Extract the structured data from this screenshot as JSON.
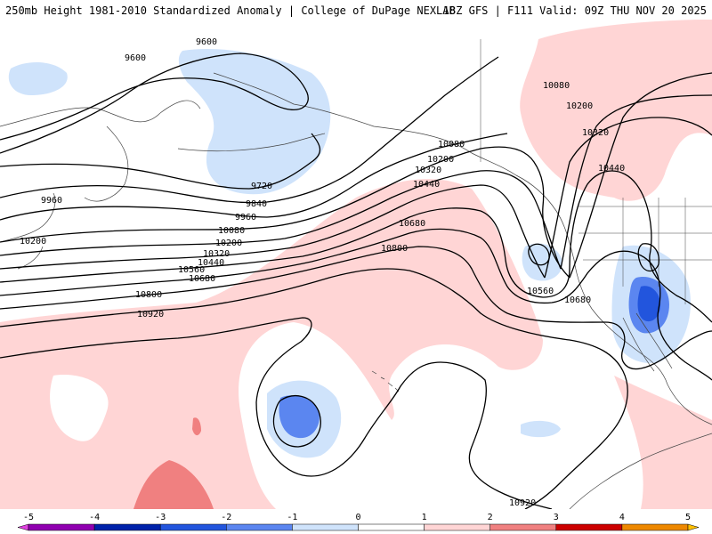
{
  "header": {
    "title_left": "250mb Height 1981-2010 Standardized Anomaly | College of DuPage NEXLAB",
    "title_right": "18Z GFS | F111 Valid: 09Z THU NOV 20 2025"
  },
  "contour_labels": {
    "l9600a": "9600",
    "l9600b": "9600",
    "l9720": "9720",
    "l9840": "9840",
    "l9960a": "9960",
    "l9960b": "9960",
    "l10080a": "10080",
    "l10080b": "10080",
    "l10080c": "10080",
    "l10200a": "10200",
    "l10200b": "10200",
    "l10200c": "10200",
    "l10200d": "10200",
    "l10320a": "10320",
    "l10320b": "10320",
    "l10320c": "10320",
    "l10440a": "10440",
    "l10440b": "10440",
    "l10440c": "10440",
    "l10560a": "10560",
    "l10560b": "10560",
    "l10680a": "10680",
    "l10680b": "10680",
    "l10680c": "10680",
    "l10800a": "10800",
    "l10800b": "10800",
    "l10920a": "10920",
    "l10920b": "10920"
  },
  "colorbar": {
    "ticks": [
      "-5",
      "-4",
      "-3",
      "-2",
      "-1",
      "0",
      "1",
      "2",
      "3",
      "4",
      "5"
    ],
    "colors": [
      "#e040e0",
      "#9000b0",
      "#0022aa",
      "#2255dd",
      "#5b86f0",
      "#cfe3fb",
      "#ffffff",
      "#ffd5d5",
      "#f08080",
      "#cc0000",
      "#ee8800",
      "#ffc000"
    ]
  }
}
